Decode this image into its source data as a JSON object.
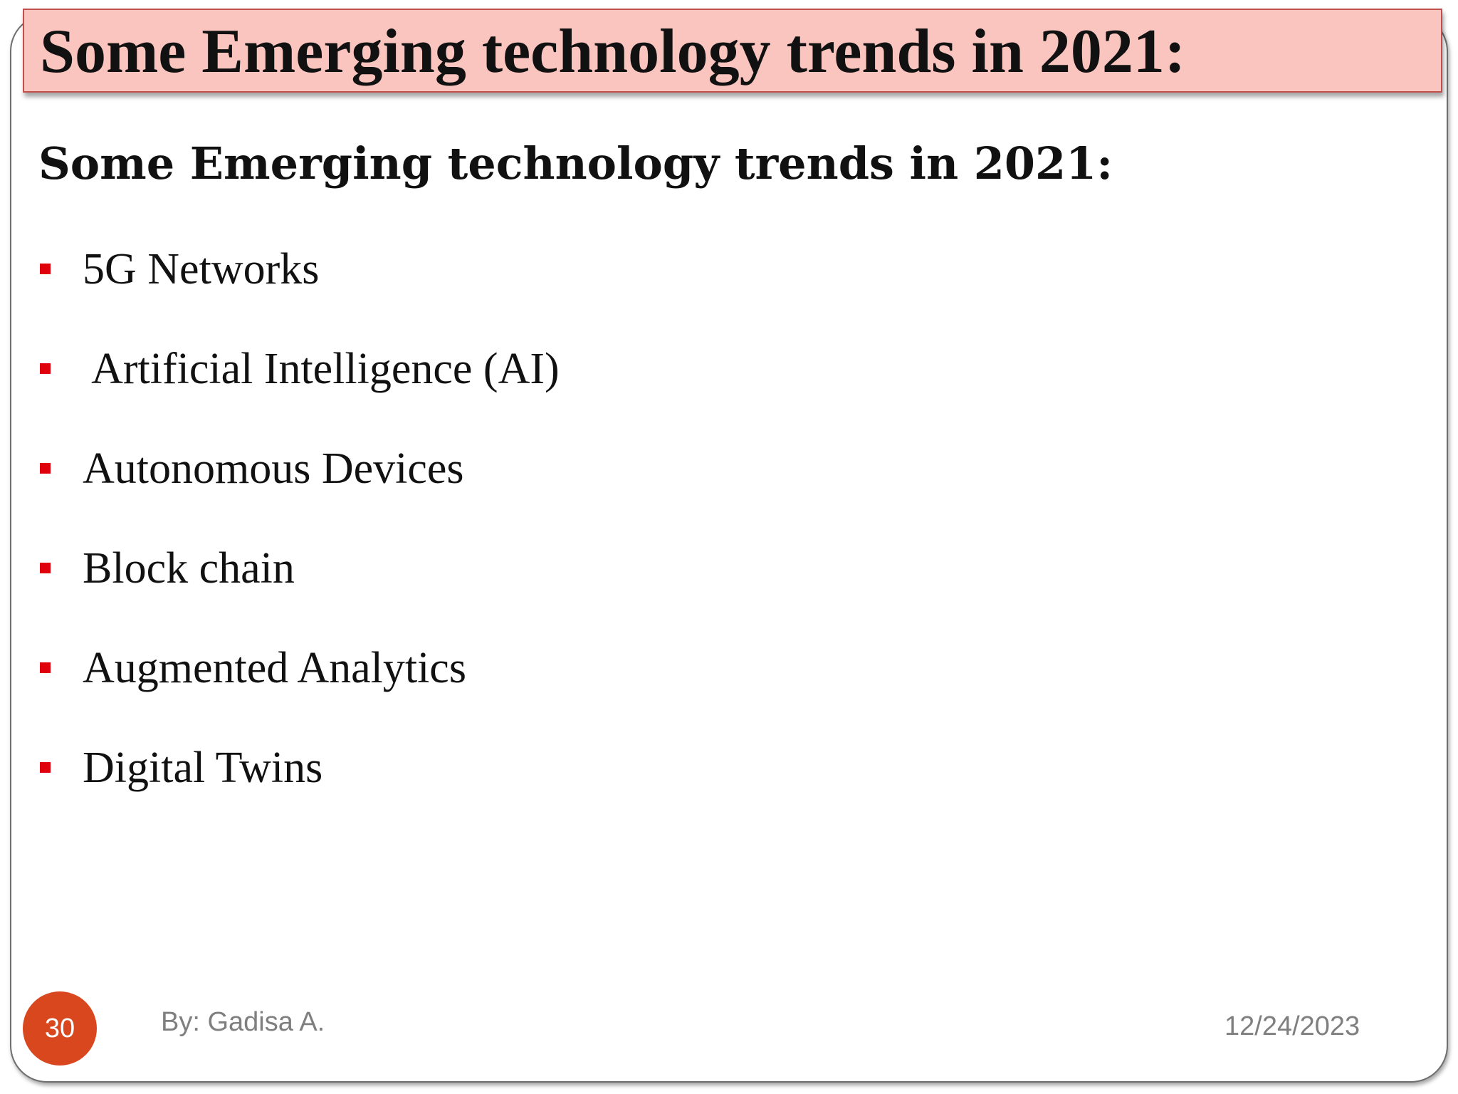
{
  "slide": {
    "title": "Some Emerging technology trends in 2021:",
    "subtitle": "Some Emerging technology trends in 2021:",
    "bullets": [
      "5G Networks",
      " Artificial Intelligence (AI)",
      "Autonomous Devices",
      "Block chain",
      "Augmented Analytics",
      "Digital Twins"
    ],
    "bullet_color": "#e0000b",
    "title_background": "#fbc5bf",
    "title_border": "#c0504d"
  },
  "footer": {
    "page_number": "30",
    "page_badge_color": "#d9471f",
    "author": "By: Gadisa A.",
    "date": "12/24/2023"
  }
}
